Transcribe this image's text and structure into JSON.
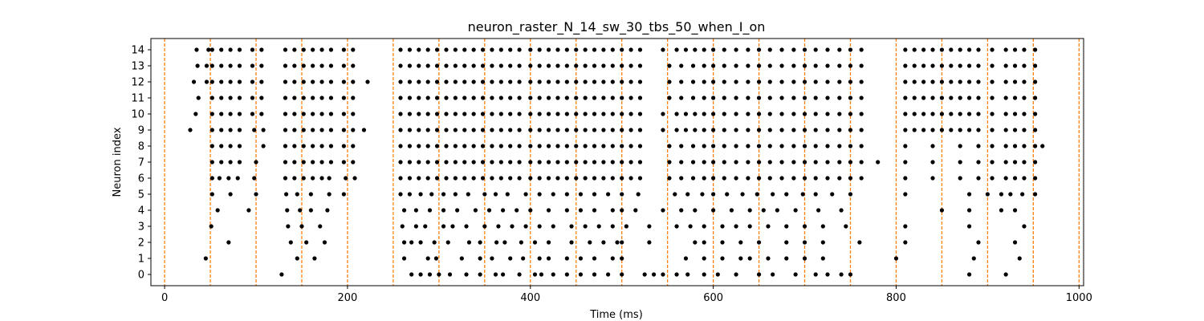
{
  "chart_data": {
    "type": "scatter",
    "title": "neuron_raster_N_14_sw_30_tbs_50_when_I_on",
    "xlabel": "Time (ms)",
    "ylabel": "Neuron index",
    "xlim": [
      -15,
      1005
    ],
    "ylim": [
      -0.7,
      14.7
    ],
    "xticks": [
      0,
      200,
      400,
      600,
      800,
      1000
    ],
    "yticks": [
      0,
      1,
      2,
      3,
      4,
      5,
      6,
      7,
      8,
      9,
      10,
      11,
      12,
      13,
      14
    ],
    "grid": false,
    "marker_color": "#000000",
    "vline_color": "#ff7f0e",
    "vlines": [
      0,
      50,
      100,
      150,
      200,
      250,
      300,
      350,
      400,
      450,
      500,
      550,
      600,
      650,
      700,
      750,
      800,
      850,
      900,
      950,
      1000
    ],
    "series": [
      {
        "style": "spikes",
        "rows": [
          {
            "neuron": 0,
            "times": [
              128,
              270,
              280,
              290,
              300,
              312,
              330,
              345,
              362,
              370,
              388,
              405,
              412,
              425,
              440,
              455,
              470,
              485,
              500,
              525,
              535,
              545,
              560,
              572,
              590,
              605,
              625,
              650,
              665,
              690,
              712,
              725,
              740,
              750,
              880,
              920
            ]
          },
          {
            "neuron": 1,
            "times": [
              45,
              145,
              164,
              262,
              288,
              297,
              325,
              345,
              358,
              378,
              392,
              410,
              420,
              440,
              455,
              470,
              490,
              500,
              570,
              590,
              610,
              630,
              640,
              660,
              680,
              700,
              720,
              800,
              885,
              935
            ]
          },
          {
            "neuron": 2,
            "times": [
              70,
              138,
              155,
              175,
              262,
              270,
              280,
              295,
              310,
              333,
              345,
              363,
              372,
              390,
              405,
              420,
              445,
              465,
              480,
              495,
              500,
              530,
              580,
              590,
              610,
              630,
              650,
              680,
              700,
              720,
              760,
              810,
              890,
              930
            ]
          },
          {
            "neuron": 3,
            "times": [
              51,
              135,
              150,
              170,
              260,
              275,
              285,
              305,
              315,
              330,
              350,
              365,
              380,
              395,
              410,
              425,
              445,
              460,
              475,
              490,
              505,
              530,
              560,
              575,
              590,
              610,
              625,
              640,
              660,
              680,
              700,
              720,
              745,
              810,
              880,
              940
            ]
          },
          {
            "neuron": 4,
            "times": [
              58,
              92,
              134,
              148,
              160,
              178,
              262,
              275,
              290,
              305,
              320,
              340,
              355,
              370,
              385,
              400,
              420,
              440,
              455,
              470,
              490,
              500,
              515,
              545,
              565,
              580,
              600,
              620,
              640,
              655,
              670,
              690,
              715,
              740,
              850,
              880,
              915,
              930
            ]
          },
          {
            "neuron": 5,
            "times": [
              52,
              72,
              100,
              133,
              145,
              160,
              180,
              196,
              258,
              268,
              280,
              292,
              305,
              318,
              332,
              350,
              362,
              375,
              395,
              410,
              425,
              440,
              455,
              470,
              485,
              500,
              518,
              558,
              572,
              588,
              600,
              615,
              632,
              648,
              665,
              680,
              698,
              712,
              730,
              750,
              810,
              880,
              900,
              915,
              925,
              938,
              952
            ]
          },
          {
            "neuron": 6,
            "times": [
              52,
              60,
              70,
              80,
              98,
              132,
              142,
              152,
              162,
              172,
              180,
              198,
              208,
              258,
              268,
              278,
              288,
              298,
              308,
              318,
              328,
              338,
              348,
              358,
              368,
              378,
              388,
              400,
              410,
              420,
              430,
              440,
              450,
              460,
              470,
              480,
              490,
              500,
              510,
              520,
              552,
              565,
              578,
              590,
              600,
              612,
              625,
              638,
              650,
              662,
              675,
              688,
              700,
              712,
              725,
              738,
              750,
              762,
              810,
              840,
              870,
              890,
              905,
              920,
              930,
              940,
              952
            ]
          },
          {
            "neuron": 7,
            "times": [
              52,
              62,
              72,
              82,
              100,
              132,
              142,
              152,
              162,
              172,
              182,
              196,
              206,
              258,
              268,
              278,
              288,
              298,
              308,
              318,
              328,
              338,
              348,
              358,
              368,
              378,
              388,
              400,
              410,
              420,
              430,
              440,
              450,
              460,
              470,
              480,
              490,
              500,
              510,
              520,
              552,
              565,
              578,
              590,
              600,
              612,
              625,
              638,
              650,
              662,
              675,
              688,
              700,
              712,
              725,
              738,
              750,
              762,
              780,
              810,
              840,
              870,
              890,
              905,
              920,
              930,
              940,
              952
            ]
          },
          {
            "neuron": 8,
            "times": [
              52,
              62,
              72,
              82,
              108,
              132,
              142,
              152,
              162,
              172,
              182,
              196,
              206,
              258,
              268,
              278,
              288,
              298,
              308,
              318,
              328,
              338,
              348,
              358,
              368,
              378,
              388,
              400,
              410,
              420,
              430,
              440,
              450,
              460,
              470,
              480,
              490,
              500,
              510,
              520,
              552,
              565,
              578,
              590,
              600,
              612,
              625,
              638,
              650,
              662,
              675,
              688,
              700,
              712,
              725,
              738,
              750,
              762,
              810,
              840,
              870,
              890,
              905,
              920,
              930,
              940,
              952,
              960
            ]
          },
          {
            "neuron": 9,
            "times": [
              28,
              52,
              62,
              72,
              82,
              98,
              108,
              132,
              142,
              152,
              162,
              172,
              182,
              196,
              206,
              218,
              258,
              268,
              278,
              288,
              298,
              308,
              318,
              328,
              338,
              348,
              358,
              368,
              378,
              388,
              400,
              410,
              420,
              430,
              440,
              450,
              460,
              470,
              480,
              490,
              500,
              510,
              520,
              545,
              560,
              570,
              580,
              590,
              600,
              612,
              625,
              638,
              650,
              662,
              675,
              688,
              700,
              712,
              725,
              738,
              750,
              762,
              810,
              820,
              830,
              840,
              850,
              860,
              870,
              880,
              890,
              905,
              920,
              930,
              940,
              952
            ]
          },
          {
            "neuron": 10,
            "times": [
              34,
              52,
              62,
              72,
              82,
              96,
              106,
              132,
              142,
              152,
              162,
              172,
              182,
              196,
              206,
              258,
              268,
              278,
              288,
              298,
              308,
              318,
              328,
              338,
              348,
              358,
              368,
              378,
              388,
              400,
              410,
              420,
              430,
              440,
              450,
              460,
              470,
              480,
              490,
              500,
              510,
              520,
              545,
              560,
              570,
              580,
              590,
              600,
              612,
              625,
              638,
              650,
              662,
              675,
              688,
              700,
              712,
              725,
              738,
              750,
              762,
              810,
              820,
              830,
              840,
              850,
              860,
              870,
              880,
              890,
              905,
              920,
              930,
              940,
              952
            ]
          },
          {
            "neuron": 11,
            "times": [
              37,
              52,
              62,
              72,
              82,
              96,
              106,
              132,
              142,
              152,
              162,
              172,
              182,
              196,
              206,
              258,
              268,
              278,
              288,
              298,
              308,
              318,
              328,
              338,
              348,
              358,
              368,
              378,
              388,
              400,
              410,
              420,
              430,
              440,
              450,
              460,
              470,
              480,
              490,
              500,
              510,
              520,
              552,
              565,
              578,
              590,
              600,
              612,
              625,
              638,
              650,
              662,
              675,
              688,
              700,
              712,
              725,
              738,
              750,
              762,
              810,
              820,
              830,
              840,
              850,
              860,
              870,
              880,
              890,
              905,
              920,
              930,
              940,
              952
            ]
          },
          {
            "neuron": 12,
            "times": [
              32,
              46,
              52,
              62,
              72,
              82,
              96,
              106,
              132,
              142,
              152,
              162,
              172,
              182,
              196,
              206,
              222,
              258,
              268,
              278,
              288,
              298,
              308,
              318,
              328,
              338,
              348,
              358,
              368,
              378,
              388,
              400,
              410,
              420,
              430,
              440,
              450,
              460,
              470,
              480,
              490,
              500,
              510,
              520,
              552,
              565,
              578,
              590,
              600,
              612,
              625,
              638,
              650,
              662,
              675,
              688,
              700,
              712,
              725,
              738,
              750,
              762,
              810,
              820,
              830,
              840,
              850,
              860,
              870,
              880,
              890,
              905,
              920,
              930,
              940,
              952
            ]
          },
          {
            "neuron": 13,
            "times": [
              36,
              46,
              52,
              62,
              72,
              82,
              96,
              106,
              132,
              142,
              152,
              162,
              172,
              182,
              196,
              206,
              258,
              268,
              278,
              288,
              298,
              308,
              318,
              328,
              338,
              348,
              358,
              368,
              378,
              388,
              400,
              410,
              420,
              430,
              440,
              450,
              460,
              470,
              480,
              490,
              500,
              510,
              520,
              552,
              565,
              578,
              590,
              600,
              612,
              625,
              638,
              650,
              662,
              675,
              688,
              700,
              712,
              725,
              738,
              750,
              762,
              810,
              820,
              830,
              840,
              850,
              860,
              870,
              880,
              890,
              905,
              920,
              930,
              940,
              952
            ]
          },
          {
            "neuron": 14,
            "times": [
              35,
              48,
              52,
              62,
              72,
              82,
              96,
              106,
              132,
              142,
              152,
              162,
              172,
              182,
              196,
              206,
              258,
              268,
              278,
              288,
              298,
              308,
              318,
              328,
              338,
              348,
              358,
              368,
              378,
              388,
              400,
              410,
              420,
              430,
              440,
              450,
              460,
              470,
              480,
              490,
              500,
              510,
              520,
              545,
              560,
              570,
              580,
              590,
              600,
              612,
              625,
              638,
              650,
              662,
              675,
              688,
              700,
              712,
              725,
              738,
              750,
              762,
              810,
              820,
              830,
              840,
              850,
              860,
              870,
              880,
              890,
              905,
              920,
              930,
              940,
              952
            ]
          }
        ]
      }
    ]
  }
}
